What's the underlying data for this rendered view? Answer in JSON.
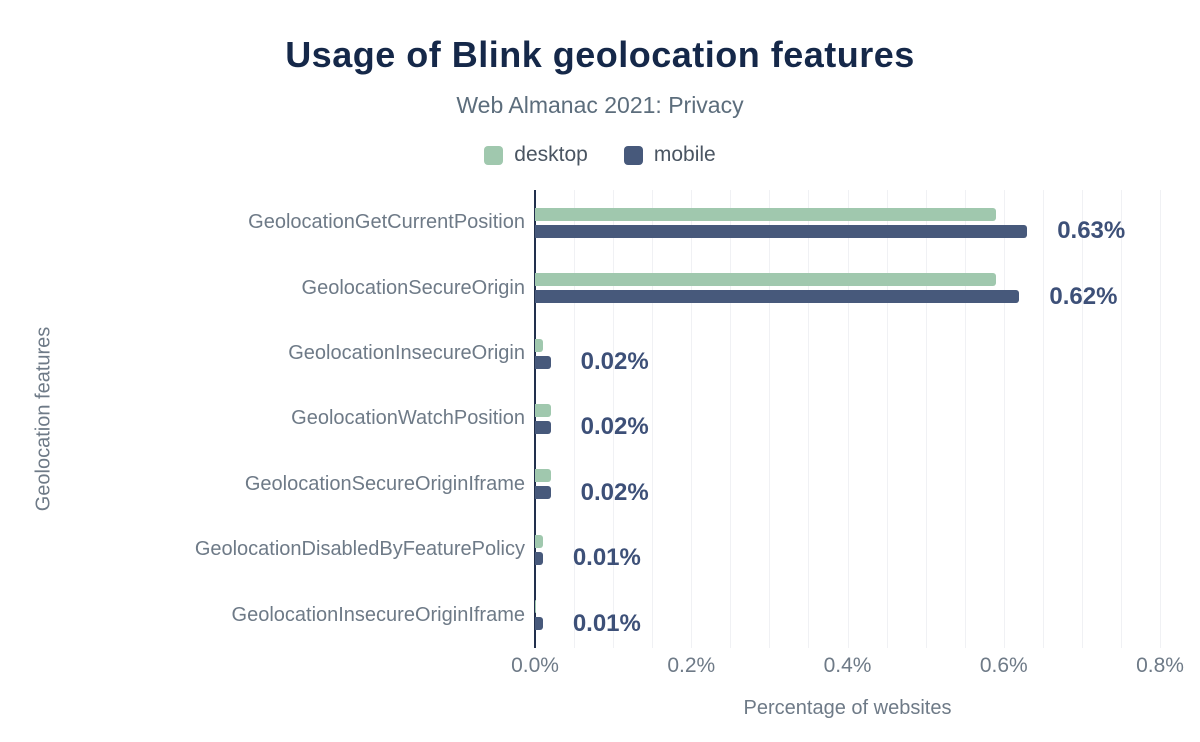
{
  "title": "Usage of Blink geolocation features",
  "subtitle": "Web Almanac 2021: Privacy",
  "legend": [
    {
      "label": "desktop",
      "color": "#a0c8ae"
    },
    {
      "label": "mobile",
      "color": "#47597b"
    }
  ],
  "colors": {
    "desktop": "#a0c8ae",
    "mobile": "#47597b",
    "title": "#152849",
    "subtitle": "#5c6d7c",
    "category_label": "#6e7a87",
    "value_label": "#3d5078",
    "axis_line": "#22304d",
    "gridline": "#f0f1f4"
  },
  "chart_data": {
    "type": "bar",
    "orientation": "horizontal",
    "title": "Usage of Blink geolocation features",
    "subtitle": "Web Almanac 2021: Privacy",
    "xlabel": "Percentage of websites",
    "ylabel": "Geolocation features",
    "xlim": [
      0,
      0.8
    ],
    "xticks": [
      "0.0%",
      "0.2%",
      "0.4%",
      "0.6%",
      "0.8%"
    ],
    "grid": true,
    "legend_position": "top",
    "categories": [
      "GeolocationGetCurrentPosition",
      "GeolocationSecureOrigin",
      "GeolocationInsecureOrigin",
      "GeolocationWatchPosition",
      "GeolocationSecureOriginIframe",
      "GeolocationDisabledByFeaturePolicy",
      "GeolocationInsecureOriginIframe"
    ],
    "series": [
      {
        "name": "desktop",
        "values": [
          0.59,
          0.59,
          0.01,
          0.02,
          0.02,
          0.01,
          0.0
        ]
      },
      {
        "name": "mobile",
        "values": [
          0.63,
          0.62,
          0.02,
          0.02,
          0.02,
          0.01,
          0.01
        ]
      }
    ],
    "value_labels": [
      "0.63%",
      "0.62%",
      "0.02%",
      "0.02%",
      "0.02%",
      "0.01%",
      "0.01%"
    ]
  }
}
